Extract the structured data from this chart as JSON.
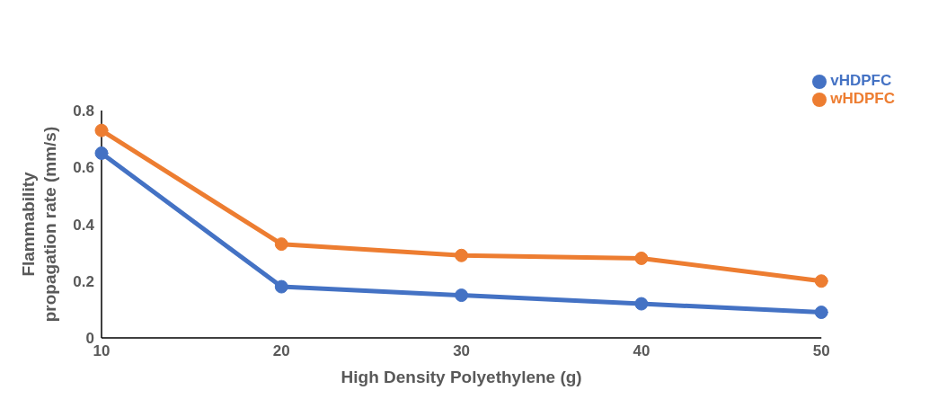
{
  "chart_data": {
    "type": "line",
    "xlabel": "High Density Polyethylene (g)",
    "ylabel": "Flammability propagation rate (mm/s)",
    "categories": [
      "10",
      "20",
      "30",
      "40",
      "50"
    ],
    "series": [
      {
        "name": "vHDPFC",
        "color": "#4472c4",
        "values": [
          0.65,
          0.18,
          0.15,
          0.12,
          0.09
        ]
      },
      {
        "name": "wHDPFC",
        "color": "#ed7d31",
        "values": [
          0.73,
          0.33,
          0.29,
          0.28,
          0.2
        ]
      }
    ],
    "ylim": [
      0,
      0.8
    ],
    "yticks": [
      0,
      0.2,
      0.4,
      0.6,
      0.8
    ],
    "grid": false,
    "legend": "top right",
    "marker": "circle",
    "line_style": "solid"
  }
}
